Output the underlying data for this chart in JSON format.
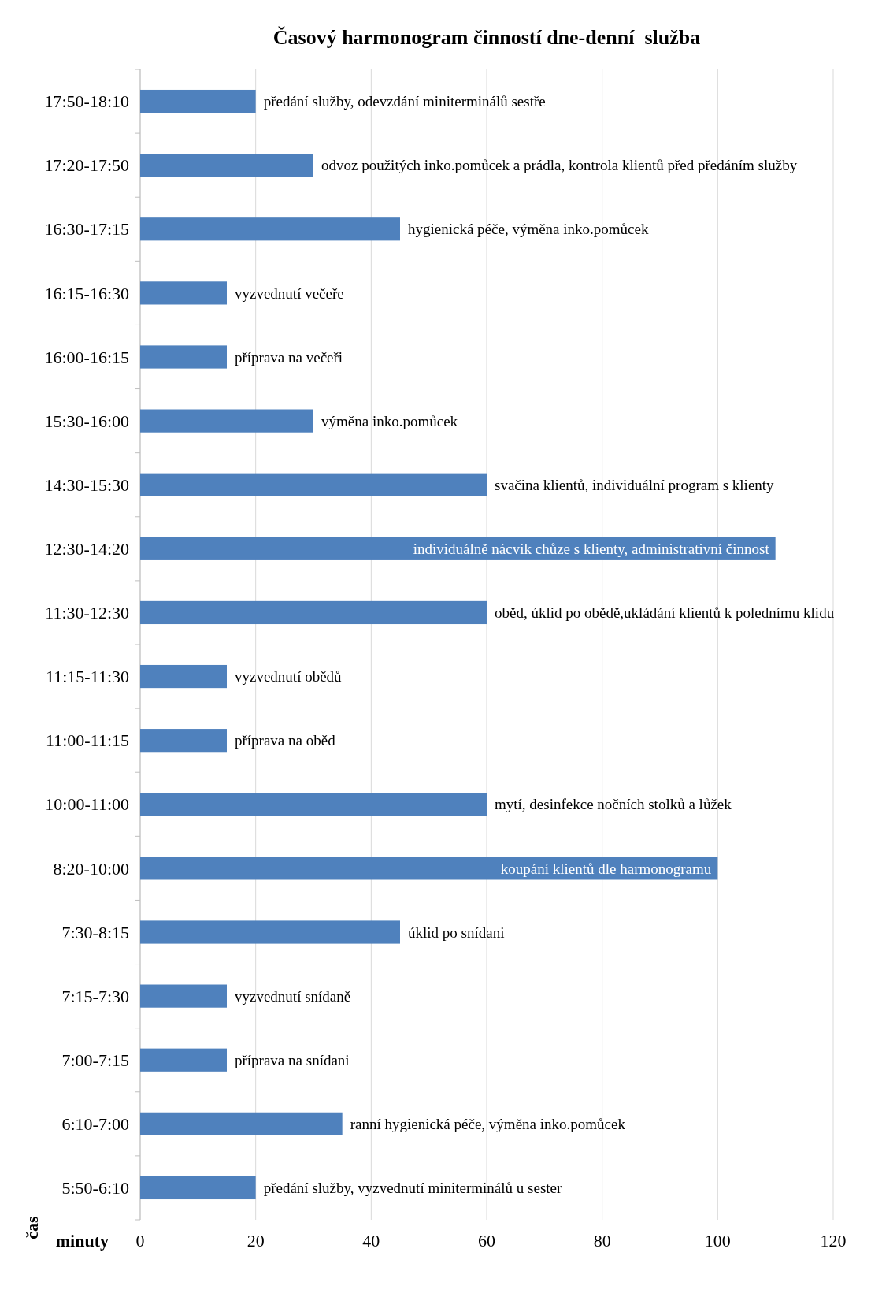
{
  "chart_data": {
    "type": "bar",
    "orientation": "horizontal",
    "title": "Časový harmonogram činností dne-denní  služba",
    "xlabel": "minuty",
    "ylabel": "čas",
    "categories": [
      "17:50-18:10",
      "17:20-17:50",
      "16:30-17:15",
      "16:15-16:30",
      "16:00-16:15",
      "15:30-16:00",
      "14:30-15:30",
      "12:30-14:20",
      "11:30-12:30",
      "11:15-11:30",
      "11:00-11:15",
      "10:00-11:00",
      "8:20-10:00",
      "7:30-8:15",
      "7:15-7:30",
      "7:00-7:15",
      "6:10-7:00",
      "5:50-6:10"
    ],
    "values": [
      20,
      30,
      45,
      15,
      15,
      30,
      60,
      110,
      60,
      15,
      15,
      60,
      100,
      45,
      15,
      15,
      35,
      20
    ],
    "value_labels": [
      "předání služby, odevzdání miniterminálů sestře",
      "odvoz použitých inko.pomůcek a prádla, kontrola klientů před předáním služby",
      "hygienická péče, výměna inko.pomůcek",
      "vyzvednutí večeře",
      "příprava na večeři",
      "výměna inko.pomůcek",
      "svačina klientů, individuální program s klienty",
      "individuálně nácvik chůze s klienty, administrativní činnost",
      "oběd, úklid po obědě,ukládání klientů k polednímu klidu",
      "vyzvednutí obědů",
      "příprava na oběd",
      "mytí, desinfekce nočních stolků a lůžek",
      "koupání klientů dle harmonogramu",
      "úklid po snídani",
      "vyzvednutí snídaně",
      "příprava na snídani",
      "ranní hygienická péče, výměna inko.pomůcek",
      "předání služby, vyzvednutí miniterminálů u sester"
    ],
    "color": "#4f81bd",
    "xlim": [
      0,
      120
    ],
    "xticks": [
      0,
      20,
      40,
      60,
      80,
      100,
      120
    ],
    "grid": "x"
  }
}
